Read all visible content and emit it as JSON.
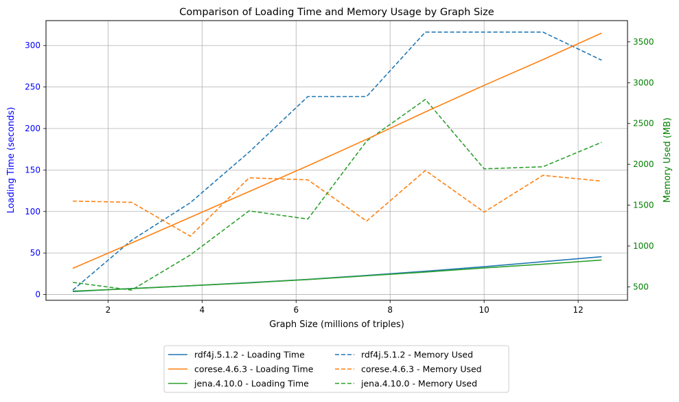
{
  "chart_data": {
    "type": "line",
    "title": "Comparison of Loading Time and Memory Usage by Graph Size",
    "xlabel": "Graph Size (millions of triples)",
    "ylabel_left": "Loading Time (seconds)",
    "ylabel_right": "Memory Used (MB)",
    "xlim": [
      0.68,
      13.05
    ],
    "ylim_left": [
      -7,
      330
    ],
    "ylim_right": [
      335,
      3760
    ],
    "xticks": [
      "2",
      "4",
      "6",
      "8",
      "10",
      "12"
    ],
    "xtick_values": [
      2,
      4,
      6,
      8,
      10,
      12
    ],
    "yticks_left": [
      "0",
      "50",
      "100",
      "150",
      "200",
      "250",
      "300"
    ],
    "ytick_left_values": [
      0,
      50,
      100,
      150,
      200,
      250,
      300
    ],
    "yticks_right": [
      "500",
      "1000",
      "1500",
      "2000",
      "2500",
      "3000",
      "3500"
    ],
    "ytick_right_values": [
      500,
      1000,
      1500,
      2000,
      2500,
      3000,
      3500
    ],
    "grid": true,
    "legend_position": "bottom-center",
    "colors": {
      "left_axis": "#0000ff",
      "right_axis": "#008000"
    },
    "loading_time_series": [
      {
        "name": "rdf4j.5.1.2 - Loading Time",
        "color": "#1f77b4",
        "x": [
          1.25,
          2.5,
          3.75,
          5.0,
          6.25,
          7.5,
          8.75,
          10.0,
          11.25,
          12.5
        ],
        "values": [
          3.5,
          7.2,
          10.5,
          14.3,
          18.2,
          23.0,
          28.0,
          33.5,
          39.5,
          45.5
        ]
      },
      {
        "name": "corese.4.6.3 - Loading Time",
        "color": "#ff7f0e",
        "x": [
          1.25,
          2.5,
          3.75,
          5.0,
          6.25,
          7.5,
          8.75,
          10.0,
          11.25,
          12.5
        ],
        "values": [
          31.5,
          62.0,
          93.0,
          124.0,
          155.0,
          187.0,
          220.0,
          252.0,
          283.0,
          315.0
        ]
      },
      {
        "name": "jena.4.10.0 - Loading Time",
        "color": "#2ca02c",
        "x": [
          1.25,
          2.5,
          3.75,
          5.0,
          6.25,
          7.5,
          8.75,
          10.0,
          11.25,
          12.5
        ],
        "values": [
          4.0,
          7.0,
          10.5,
          14.0,
          18.0,
          22.5,
          27.0,
          32.0,
          36.5,
          41.5
        ]
      }
    ],
    "memory_series": [
      {
        "name": "rdf4j.5.1.2 - Memory Used",
        "color": "#1f77b4",
        "x": [
          1.25,
          2.5,
          3.75,
          5.0,
          6.25,
          7.5,
          8.75,
          10.0,
          11.25,
          12.5
        ],
        "values": [
          460,
          1070,
          1530,
          2150,
          2830,
          2830,
          3620,
          3620,
          3620,
          3275
        ]
      },
      {
        "name": "corese.4.6.3 - Memory Used",
        "color": "#ff7f0e",
        "x": [
          1.25,
          2.5,
          3.75,
          5.0,
          6.25,
          7.5,
          8.75,
          10.0,
          11.25,
          12.5
        ],
        "values": [
          1550,
          1535,
          1120,
          1835,
          1810,
          1305,
          1925,
          1415,
          1865,
          1795
        ]
      },
      {
        "name": "jena.4.10.0 - Memory Used",
        "color": "#2ca02c",
        "x": [
          1.25,
          2.5,
          3.75,
          5.0,
          6.25,
          7.5,
          8.75,
          10.0,
          11.25,
          12.5
        ],
        "values": [
          555,
          460,
          890,
          1430,
          1330,
          2285,
          2795,
          1945,
          1970,
          2270
        ]
      }
    ]
  }
}
